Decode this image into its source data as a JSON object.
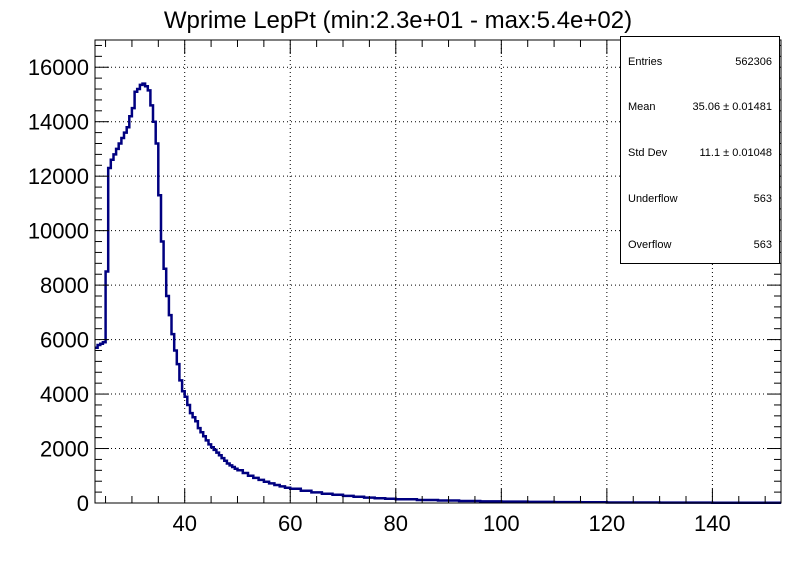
{
  "chart_data": {
    "type": "line",
    "title": "Wprime LepPt (min:2.3e+01 - max:5.4e+02)",
    "xlabel": "",
    "ylabel": "",
    "xlim": [
      23,
      153
    ],
    "ylim": [
      0,
      17000
    ],
    "grid": true,
    "line_color": "#000080",
    "x_ticks": [
      40,
      60,
      80,
      100,
      120,
      140
    ],
    "y_ticks": [
      0,
      2000,
      4000,
      6000,
      8000,
      10000,
      12000,
      14000,
      16000
    ],
    "series": [
      {
        "x": [
          23,
          23.5,
          24,
          24.5,
          25,
          25.5,
          26,
          26.5,
          27,
          27.5,
          28,
          28.5,
          29,
          29.5,
          30,
          30.5,
          31,
          31.5,
          32,
          32.5,
          33,
          33.5,
          34,
          34.5,
          35,
          35.5,
          36,
          36.5,
          37,
          37.5,
          38,
          38.5,
          39,
          39.5,
          40,
          40.5,
          41,
          41.5,
          42,
          42.5,
          43,
          43.5,
          44,
          44.5,
          45,
          45.5,
          46,
          46.5,
          47,
          47.5,
          48,
          48.5,
          49,
          49.5,
          50,
          51,
          52,
          53,
          54,
          55,
          56,
          57,
          58,
          59,
          60,
          62,
          64,
          66,
          68,
          70,
          72,
          74,
          76,
          78,
          80,
          84,
          88,
          92,
          96,
          100,
          105,
          110,
          115,
          120,
          130,
          140,
          150
        ],
        "values": [
          5700,
          5800,
          5850,
          5900,
          8500,
          12300,
          12600,
          12800,
          13000,
          13200,
          13400,
          13600,
          13800,
          14200,
          14500,
          15100,
          15200,
          15350,
          15400,
          15300,
          15150,
          14600,
          14000,
          13200,
          11300,
          9600,
          8600,
          7600,
          6900,
          6200,
          5600,
          5100,
          4500,
          4100,
          3900,
          3600,
          3300,
          3150,
          3000,
          2750,
          2600,
          2450,
          2300,
          2150,
          2050,
          1950,
          1850,
          1750,
          1650,
          1550,
          1450,
          1380,
          1320,
          1260,
          1200,
          1100,
          1000,
          920,
          850,
          780,
          720,
          660,
          610,
          560,
          520,
          450,
          390,
          340,
          300,
          260,
          230,
          200,
          175,
          155,
          135,
          110,
          90,
          75,
          60,
          50,
          40,
          32,
          25,
          20,
          14,
          10,
          7
        ]
      }
    ]
  },
  "stats": {
    "entries_label": "Entries",
    "entries_value": "562306",
    "mean_label": "Mean",
    "mean_value": "35.06 ± 0.01481",
    "stddev_label": "Std Dev",
    "stddev_value": "11.1 ± 0.01048",
    "underflow_label": "Underflow",
    "underflow_value": "563",
    "overflow_label": "Overflow",
    "overflow_value": "563"
  }
}
